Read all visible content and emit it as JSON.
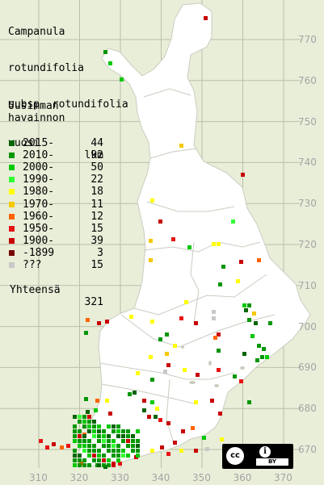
{
  "title": {
    "line1": "Campanula",
    "line2": "rotundifolia",
    "line3": "subsp. rotundifolia"
  },
  "legend": {
    "header1": "Uusimman",
    "header2": "havainnon",
    "header3_left": "vuosi",
    "header3_right": "lkm",
    "rows": [
      {
        "label": "2015-",
        "count": "44",
        "color": "#006400"
      },
      {
        "label": "2010-",
        "count": "92",
        "color": "#009600"
      },
      {
        "label": "2000-",
        "count": "50",
        "color": "#00c800"
      },
      {
        "label": "1990-",
        "count": "22",
        "color": "#32ff32"
      },
      {
        "label": "1980-",
        "count": "18",
        "color": "#ffff00"
      },
      {
        "label": "1970-",
        "count": "11",
        "color": "#f5c800"
      },
      {
        "label": "1960-",
        "count": "12",
        "color": "#ff6400"
      },
      {
        "label": "1950-",
        "count": "15",
        "color": "#e61414"
      },
      {
        "label": "1900-",
        "count": "39",
        "color": "#c80000"
      },
      {
        "label": "-1899",
        "count": "3",
        "color": "#780000"
      },
      {
        "label": "???",
        "count": "15",
        "color": "#c8c8c8"
      }
    ],
    "total_label": "Yhteensä",
    "total_count": "321"
  },
  "axes": {
    "y_labels": [
      "770",
      "760",
      "750",
      "740",
      "730",
      "720",
      "710",
      "700",
      "690",
      "680",
      "670"
    ],
    "x_labels": [
      "310",
      "320",
      "330",
      "340",
      "350",
      "360",
      "370"
    ]
  },
  "license": {
    "cc": "cc",
    "by": "BY"
  }
}
